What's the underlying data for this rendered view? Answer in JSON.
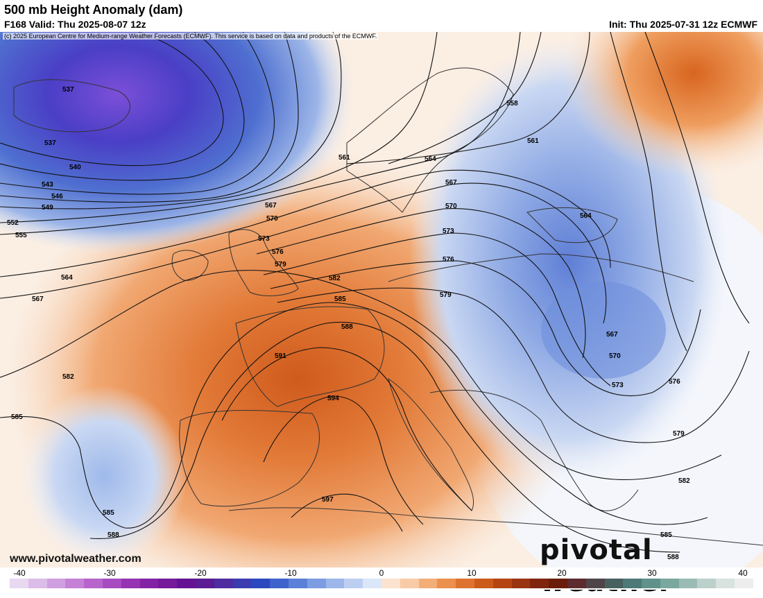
{
  "header": {
    "title": "500 mb Height Anomaly (dam)",
    "valid": "F168 Valid: Thu 2025-08-07 12z",
    "init": "Init: Thu 2025-07-31 12z ECMWF"
  },
  "copyright": "(c) 2025 European Centre for Medium-range Weather Forecasts (ECMWF). This service is based on data and products of the ECMWF.",
  "footer": {
    "website": "www.pivotalweather.com",
    "brand": "pivotal weather"
  },
  "colorbar": {
    "ticks": [
      "-40",
      "-30",
      "-20",
      "-10",
      "0",
      "10",
      "20",
      "30",
      "40"
    ],
    "colors": [
      "#e8d8f0",
      "#dcbce8",
      "#d09fe0",
      "#c481d6",
      "#b765cc",
      "#a74cc0",
      "#9533b3",
      "#8422a6",
      "#741a9b",
      "#641293",
      "#5a1b93",
      "#4d2da0",
      "#3b3cb0",
      "#2c48bf",
      "#3e63cc",
      "#5a80d8",
      "#7c9de2",
      "#9db7ea",
      "#bdcff1",
      "#dbe6f8",
      "#fbe3cf",
      "#f8cba6",
      "#f3ae78",
      "#eb904f",
      "#de7330",
      "#cc5a1b",
      "#b44512",
      "#9a330f",
      "#7f250d",
      "#6a1d0b",
      "#5d2a2e",
      "#4f4548",
      "#486060",
      "#4d7a76",
      "#5e928a",
      "#7aa89f",
      "#9bbcb5",
      "#bcd0cb",
      "#d8e2de",
      "#ededed"
    ]
  },
  "map": {
    "contour_labels": [
      "537",
      "537",
      "540",
      "543",
      "546",
      "549",
      "552",
      "555",
      "564",
      "567",
      "582",
      "585",
      "585",
      "588",
      "561",
      "564",
      "567",
      "567",
      "570",
      "573",
      "576",
      "579",
      "582",
      "585",
      "588",
      "591",
      "594",
      "597",
      "558",
      "561",
      "564",
      "567",
      "570",
      "570",
      "573",
      "573",
      "576",
      "576",
      "579",
      "579",
      "582",
      "585",
      "588"
    ]
  }
}
